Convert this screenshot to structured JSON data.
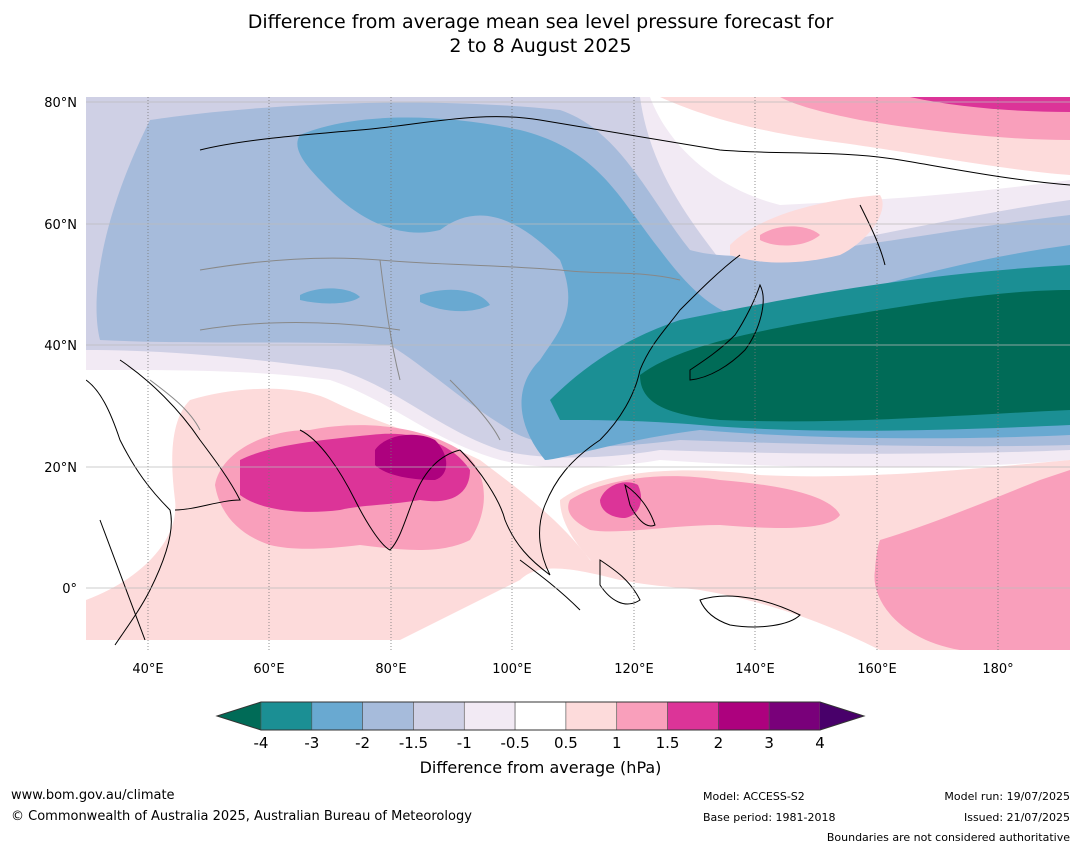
{
  "title": {
    "line1": "Difference from average mean sea level pressure forecast for",
    "line2": "2 to 8 August 2025"
  },
  "map": {
    "region": "Asia / Western Pacific",
    "lat_labels": [
      "80°N",
      "60°N",
      "40°N",
      "20°N",
      "0°"
    ],
    "lon_labels": [
      "40°E",
      "60°E",
      "80°E",
      "100°E",
      "120°E",
      "140°E",
      "160°E",
      "180°"
    ],
    "features": [
      {
        "name": "strong-negative-anomaly",
        "approx_center": "35°N 150°E",
        "class": "-4 to -3"
      },
      {
        "name": "weak-negative-anomaly",
        "approx_center": "50°N 90°E",
        "class": "-2 to -1"
      },
      {
        "name": "positive-anomaly",
        "approx_center": "20°N 80°E",
        "class": "2 to 3"
      },
      {
        "name": "positive-anomaly",
        "approx_center": "17°N 120°E",
        "class": "1.5 to 2"
      },
      {
        "name": "positive-anomaly",
        "approx_center": "10°N 180°",
        "class": "1 to 1.5"
      },
      {
        "name": "positive-anomaly",
        "approx_center": "80°N 175°E",
        "class": "1.5 to 2"
      }
    ]
  },
  "colorbar": {
    "ticks": [
      "-4",
      "-3",
      "-2",
      "-1.5",
      "-1",
      "-0.5",
      "0.5",
      "1",
      "1.5",
      "2",
      "3",
      "4"
    ],
    "colors": [
      "#1b8f94",
      "#69a9d1",
      "#a6bbdb",
      "#cfd0e5",
      "#f2eaf4",
      "#ffffff",
      "#fddbdb",
      "#f99fbb",
      "#dc3498",
      "#ad017e",
      "#79007a"
    ],
    "under_color": "#006b57",
    "over_color": "#48006a",
    "label": "Difference from average (hPa)"
  },
  "footer": {
    "website": "www.bom.gov.au/climate",
    "copyright": "© Commonwealth of Australia 2025, Australian Bureau of Meteorology",
    "model": "Model: ACCESS-S2",
    "base_period": "Base period: 1981-2018",
    "model_run": "Model run: 19/07/2025",
    "issued": "Issued: 21/07/2025",
    "disclaimer": "Boundaries are not considered authoritative"
  }
}
